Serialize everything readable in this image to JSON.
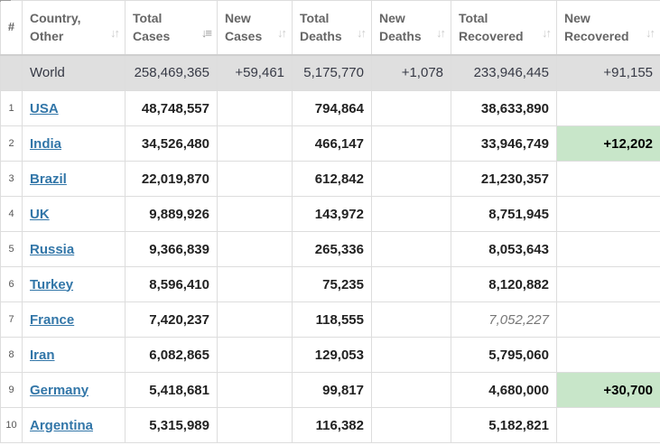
{
  "headers": [
    {
      "label": "#"
    },
    {
      "label": "Country,\nOther"
    },
    {
      "label": "Total\nCases"
    },
    {
      "label": "New\nCases"
    },
    {
      "label": "Total\nDeaths"
    },
    {
      "label": "New\nDeaths"
    },
    {
      "label": "Total\nRecovered"
    },
    {
      "label": "New\nRecovered"
    }
  ],
  "world": {
    "name": "World",
    "total_cases": "258,469,365",
    "new_cases": "+59,461",
    "total_deaths": "5,175,770",
    "new_deaths": "+1,078",
    "total_recovered": "233,946,445",
    "new_recovered": "+91,155"
  },
  "rows": [
    {
      "idx": "1",
      "country": "USA",
      "total_cases": "48,748,557",
      "new_cases": "",
      "total_deaths": "794,864",
      "new_deaths": "",
      "total_recovered": "38,633,890",
      "new_recovered": ""
    },
    {
      "idx": "2",
      "country": "India",
      "total_cases": "34,526,480",
      "new_cases": "",
      "total_deaths": "466,147",
      "new_deaths": "",
      "total_recovered": "33,946,749",
      "new_recovered": "+12,202"
    },
    {
      "idx": "3",
      "country": "Brazil",
      "total_cases": "22,019,870",
      "new_cases": "",
      "total_deaths": "612,842",
      "new_deaths": "",
      "total_recovered": "21,230,357",
      "new_recovered": ""
    },
    {
      "idx": "4",
      "country": "UK",
      "total_cases": "9,889,926",
      "new_cases": "",
      "total_deaths": "143,972",
      "new_deaths": "",
      "total_recovered": "8,751,945",
      "new_recovered": ""
    },
    {
      "idx": "5",
      "country": "Russia",
      "total_cases": "9,366,839",
      "new_cases": "",
      "total_deaths": "265,336",
      "new_deaths": "",
      "total_recovered": "8,053,643",
      "new_recovered": ""
    },
    {
      "idx": "6",
      "country": "Turkey",
      "total_cases": "8,596,410",
      "new_cases": "",
      "total_deaths": "75,235",
      "new_deaths": "",
      "total_recovered": "8,120,882",
      "new_recovered": ""
    },
    {
      "idx": "7",
      "country": "France",
      "total_cases": "7,420,237",
      "new_cases": "",
      "total_deaths": "118,555",
      "new_deaths": "",
      "total_recovered": "7,052,227",
      "new_recovered": ""
    },
    {
      "idx": "8",
      "country": "Iran",
      "total_cases": "6,082,865",
      "new_cases": "",
      "total_deaths": "129,053",
      "new_deaths": "",
      "total_recovered": "5,795,060",
      "new_recovered": ""
    },
    {
      "idx": "9",
      "country": "Germany",
      "total_cases": "5,418,681",
      "new_cases": "",
      "total_deaths": "99,817",
      "new_deaths": "",
      "total_recovered": "4,680,000",
      "new_recovered": "+30,700"
    },
    {
      "idx": "10",
      "country": "Argentina",
      "total_cases": "5,315,989",
      "new_cases": "",
      "total_deaths": "116,382",
      "new_deaths": "",
      "total_recovered": "5,182,821",
      "new_recovered": ""
    }
  ],
  "colors": {
    "new_recovered_highlight": "#c8e6c9",
    "world_row_bg": "#dfdfdf",
    "country_link": "#3276a8"
  }
}
